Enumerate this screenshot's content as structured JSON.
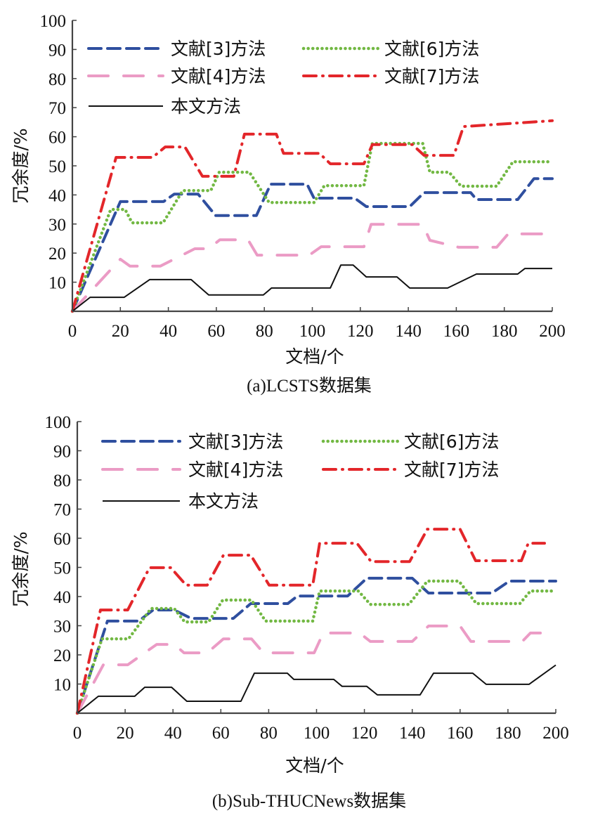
{
  "chart_data": [
    {
      "type": "line",
      "title": "(a)LCSTS数据集",
      "xlabel": "文档/个",
      "ylabel": "冗余度/%",
      "xlim": [
        0,
        200
      ],
      "ylim": [
        0,
        100
      ],
      "xticks": [
        "0",
        "20",
        "40",
        "60",
        "80",
        "100",
        "120",
        "140",
        "160",
        "180",
        "200"
      ],
      "yticks": [
        "10",
        "20",
        "30",
        "40",
        "50",
        "60",
        "70",
        "80",
        "90",
        "100"
      ],
      "grid": false,
      "legend_position": "top-left",
      "series": [
        {
          "name": "文献[3]方法",
          "color": "#2f4f9f",
          "style": "dashed",
          "x": [
            0,
            20,
            38,
            42.5,
            52.4,
            59.7,
            76.7,
            82.6,
            97.8,
            100.7,
            117.7,
            122.5,
            140.6,
            146.6,
            166,
            168.4,
            185.6,
            192.4,
            200
          ],
          "y": [
            0,
            37.7,
            37.7,
            40.3,
            40.3,
            32.9,
            32.9,
            43.7,
            43.7,
            38.9,
            38.9,
            36,
            36,
            40.8,
            40.8,
            38.4,
            38.4,
            45.6,
            45.6
          ]
        },
        {
          "name": "文献[6]方法",
          "color": "#72b843",
          "style": "dotted",
          "x": [
            0,
            16,
            22,
            24.9,
            37.8,
            46,
            57.7,
            61.2,
            73.8,
            82,
            100.7,
            105,
            121.5,
            125,
            146,
            149,
            157,
            162,
            176.8,
            183.6,
            200
          ],
          "y": [
            0,
            35,
            35,
            30.4,
            30.4,
            41.5,
            41.5,
            47.8,
            47.8,
            37.4,
            37.4,
            43.2,
            43.2,
            57.7,
            57.7,
            47.8,
            47.8,
            43,
            43,
            51.4,
            51.4
          ]
        },
        {
          "name": "文献[4]方法",
          "color": "#eb9bc5",
          "style": "longdash",
          "x": [
            0,
            20,
            24,
            36.6,
            51,
            56.8,
            61.5,
            73.2,
            77,
            98.7,
            103.7,
            121.5,
            124.5,
            146,
            149,
            161,
            176.8,
            181.6,
            200
          ],
          "y": [
            0,
            17.9,
            15.5,
            15.5,
            21.5,
            21.5,
            24.6,
            24.6,
            19.3,
            19.3,
            22.2,
            22.2,
            29.9,
            29.9,
            24.4,
            22,
            22,
            26.6,
            26.6
          ]
        },
        {
          "name": "文献[7]方法",
          "color": "#e3262a",
          "style": "dashdot",
          "x": [
            0,
            18.2,
            33.4,
            38.7,
            46.9,
            54.2,
            67.3,
            71.7,
            85,
            88,
            103,
            107.5,
            121.5,
            125,
            141.7,
            146.6,
            159,
            163,
            200
          ],
          "y": [
            0,
            52.9,
            52.9,
            56.5,
            56.5,
            46.4,
            46.4,
            60.9,
            60.9,
            54.3,
            54.3,
            50.7,
            50.7,
            57.3,
            57.3,
            53.6,
            53.6,
            63.5,
            65.5
          ]
        },
        {
          "name": "本文方法",
          "color": "#111111",
          "style": "solid",
          "x": [
            0,
            7.4,
            21.6,
            32.2,
            49.5,
            56.8,
            79.6,
            83,
            107.5,
            111.9,
            117,
            122.5,
            135.3,
            140.6,
            156.4,
            168.4,
            185.6,
            188.6,
            200
          ],
          "y": [
            0,
            4.8,
            4.8,
            10.9,
            10.9,
            5.6,
            5.6,
            8,
            8,
            15.9,
            15.9,
            11.8,
            11.8,
            8,
            8,
            12.8,
            12.8,
            14.7,
            14.7
          ]
        }
      ]
    },
    {
      "type": "line",
      "title": "(b)Sub-THUCNews数据集",
      "xlabel": "文档/个",
      "ylabel": "冗余度/%",
      "xlim": [
        0,
        200
      ],
      "ylim": [
        0,
        100
      ],
      "xticks": [
        "0",
        "20",
        "40",
        "60",
        "80",
        "100",
        "120",
        "140",
        "160",
        "180",
        "200"
      ],
      "yticks": [
        "10",
        "20",
        "30",
        "40",
        "50",
        "60",
        "70",
        "80",
        "90",
        "100"
      ],
      "grid": false,
      "legend_position": "top-left",
      "series": [
        {
          "name": "文献[3]方法",
          "color": "#2f4f9f",
          "style": "dashed",
          "x": [
            0,
            12.6,
            25.6,
            31.7,
            40.5,
            47.6,
            65.2,
            72.5,
            88,
            92,
            113,
            121,
            140,
            146.8,
            173.3,
            180.6,
            200
          ],
          "y": [
            0,
            31.6,
            31.6,
            35.4,
            35.4,
            32.5,
            32.5,
            37.6,
            37.6,
            40.2,
            40.2,
            46.3,
            46.3,
            41.2,
            41.2,
            45.3,
            45.3
          ]
        },
        {
          "name": "文献[6]方法",
          "color": "#72b843",
          "style": "dotted",
          "x": [
            0,
            10.3,
            21.4,
            30.8,
            40.5,
            44.9,
            54.9,
            60.8,
            72.8,
            78.7,
            98.4,
            101.3,
            117.5,
            122.5,
            138.6,
            146.3,
            159.5,
            166.8,
            185,
            189.4,
            200
          ],
          "y": [
            0,
            25.5,
            25.5,
            35.9,
            35.9,
            31.3,
            31.3,
            38.8,
            38.8,
            31.6,
            31.6,
            41.9,
            41.9,
            37.3,
            37.3,
            45.3,
            45.3,
            37.6,
            37.6,
            41.9,
            41.9
          ]
        },
        {
          "name": "文献[4]方法",
          "color": "#eb9bc5",
          "style": "longdash",
          "x": [
            0,
            10.9,
            21.1,
            33.2,
            40.5,
            44.6,
            54.3,
            61.1,
            72.8,
            77.8,
            99,
            102.8,
            118,
            122.5,
            140,
            146.8,
            160,
            164.5,
            186,
            189.4,
            200
          ],
          "y": [
            0,
            16.6,
            16.6,
            23.6,
            23.6,
            20.7,
            20.7,
            25.5,
            25.5,
            20.7,
            20.7,
            27.5,
            27.5,
            24.6,
            24.6,
            29.9,
            29.9,
            24.6,
            24.6,
            27.5,
            27.5
          ]
        },
        {
          "name": "文献[7]方法",
          "color": "#e3262a",
          "style": "dashdot",
          "x": [
            0,
            9.7,
            21.1,
            30.2,
            39.1,
            45.5,
            54.3,
            61.1,
            72.5,
            80.2,
            98.4,
            101.3,
            116.9,
            122.8,
            138.9,
            146.3,
            160,
            166.5,
            185.6,
            188.5,
            195.3
          ],
          "y": [
            0,
            35.4,
            35.4,
            49.9,
            49.9,
            43.9,
            43.9,
            54.2,
            54.2,
            43.9,
            43.9,
            58.3,
            58.3,
            52,
            52,
            63.1,
            63.1,
            52.3,
            52.3,
            58.3,
            58.3
          ]
        },
        {
          "name": "本文方法",
          "color": "#111111",
          "style": "solid",
          "x": [
            0,
            8.8,
            24,
            28.2,
            39.4,
            45.8,
            68.4,
            74,
            87.8,
            90.5,
            107.2,
            110.7,
            121,
            125.4,
            143.3,
            148.9,
            165.3,
            170.9,
            188.8,
            200
          ],
          "y": [
            0,
            5.8,
            5.8,
            8.9,
            8.9,
            4.1,
            4.1,
            13.7,
            13.7,
            11.6,
            11.6,
            9.2,
            9.2,
            6.3,
            6.3,
            13.7,
            13.7,
            9.9,
            9.9,
            16.5
          ]
        }
      ]
    }
  ]
}
